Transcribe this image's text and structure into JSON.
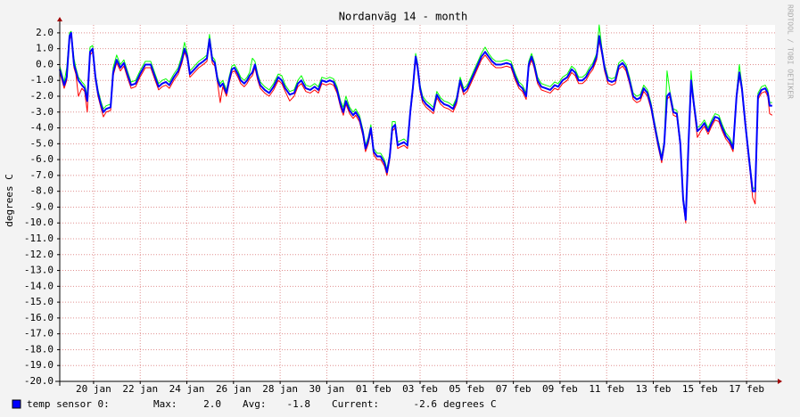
{
  "chart_data": {
    "type": "line",
    "title": "Nordanväg 14 - month",
    "y_label": "degrees C",
    "watermark": "RRDTOOL / TOBI OETIKER",
    "x": [
      18.55,
      18.74,
      18.85,
      18.97,
      19.04,
      19.16,
      19.24,
      19.35,
      19.5,
      19.62,
      19.73,
      19.85,
      19.96,
      20.08,
      20.19,
      20.31,
      20.42,
      20.54,
      20.73,
      20.84,
      20.99,
      21.15,
      21.3,
      21.45,
      21.61,
      21.8,
      21.99,
      22.22,
      22.45,
      22.64,
      22.79,
      22.94,
      23.1,
      23.25,
      23.44,
      23.63,
      23.79,
      23.9,
      24.02,
      24.13,
      24.32,
      24.51,
      24.7,
      24.86,
      24.97,
      25.09,
      25.2,
      25.32,
      25.43,
      25.54,
      25.7,
      25.81,
      25.93,
      26.04,
      26.19,
      26.31,
      26.46,
      26.58,
      26.69,
      26.81,
      26.92,
      27.04,
      27.15,
      27.34,
      27.53,
      27.72,
      27.92,
      28.07,
      28.22,
      28.41,
      28.6,
      28.76,
      28.91,
      29.1,
      29.29,
      29.48,
      29.64,
      29.79,
      29.98,
      30.13,
      30.29,
      30.44,
      30.59,
      30.71,
      30.82,
      30.98,
      31.13,
      31.24,
      31.4,
      31.55,
      31.66,
      31.78,
      31.89,
      32.01,
      32.16,
      32.31,
      32.47,
      32.58,
      32.7,
      32.81,
      32.93,
      33.04,
      33.16,
      33.31,
      33.46,
      33.58,
      33.69,
      33.81,
      33.88,
      34.0,
      34.11,
      34.26,
      34.42,
      34.57,
      34.72,
      34.88,
      35.03,
      35.22,
      35.41,
      35.56,
      35.72,
      35.87,
      36.02,
      36.18,
      36.33,
      36.48,
      36.63,
      36.79,
      36.94,
      37.09,
      37.25,
      37.48,
      37.71,
      37.9,
      38.09,
      38.24,
      38.39,
      38.55,
      38.66,
      38.78,
      38.89,
      39.04,
      39.2,
      39.39,
      39.58,
      39.77,
      39.92,
      40.11,
      40.31,
      40.5,
      40.65,
      40.8,
      40.96,
      41.11,
      41.26,
      41.41,
      41.57,
      41.68,
      41.8,
      41.91,
      42.06,
      42.22,
      42.37,
      42.52,
      42.68,
      42.83,
      42.98,
      43.14,
      43.29,
      43.44,
      43.59,
      43.75,
      43.9,
      44.05,
      44.21,
      44.36,
      44.47,
      44.59,
      44.7,
      44.86,
      45.01,
      45.16,
      45.28,
      45.39,
      45.51,
      45.62,
      45.74,
      45.89,
      46.04,
      46.19,
      46.35,
      46.5,
      46.65,
      46.81,
      46.96,
      47.11,
      47.27,
      47.42,
      47.57,
      47.69,
      47.8,
      47.95,
      48.11,
      48.26,
      48.37,
      48.49,
      48.64,
      48.8,
      48.91,
      48.99,
      49.1
    ],
    "series": [
      {
        "color": "#ff0000",
        "values": [
          -0.5,
          -1.5,
          -1.0,
          1.6,
          1.8,
          -0.2,
          -0.6,
          -2.0,
          -1.5,
          -1.7,
          -3.0,
          0.6,
          0.8,
          -1.0,
          -2.0,
          -2.7,
          -3.3,
          -3.0,
          -2.9,
          -0.7,
          0.1,
          -0.4,
          -0.1,
          -0.8,
          -1.5,
          -1.4,
          -0.8,
          -0.2,
          -0.2,
          -1.0,
          -1.6,
          -1.4,
          -1.3,
          -1.5,
          -1.0,
          -0.6,
          0.1,
          0.8,
          0.3,
          -0.8,
          -0.5,
          -0.2,
          0.0,
          0.2,
          1.4,
          0.1,
          -0.1,
          -1.2,
          -2.4,
          -1.4,
          -2.0,
          -1.2,
          -0.5,
          -0.4,
          -0.8,
          -1.2,
          -1.4,
          -1.2,
          -0.9,
          -0.7,
          -0.2,
          -1.0,
          -1.5,
          -1.8,
          -2.0,
          -1.6,
          -1.0,
          -1.2,
          -1.7,
          -2.3,
          -2.0,
          -1.4,
          -1.2,
          -1.7,
          -1.8,
          -1.6,
          -1.8,
          -1.2,
          -1.3,
          -1.2,
          -1.3,
          -1.8,
          -2.7,
          -3.2,
          -2.5,
          -3.1,
          -3.4,
          -3.2,
          -3.6,
          -4.5,
          -5.5,
          -5.0,
          -4.2,
          -5.7,
          -6.0,
          -6.0,
          -6.4,
          -7.0,
          -6.0,
          -4.2,
          -4.0,
          -5.3,
          -5.2,
          -5.1,
          -5.3,
          -3.2,
          -1.7,
          0.3,
          -0.2,
          -1.7,
          -2.4,
          -2.7,
          -2.9,
          -3.1,
          -2.1,
          -2.5,
          -2.7,
          -2.8,
          -3.0,
          -2.5,
          -1.2,
          -1.9,
          -1.7,
          -1.2,
          -0.7,
          -0.2,
          0.3,
          0.6,
          0.3,
          0.0,
          -0.2,
          -0.2,
          -0.1,
          -0.2,
          -1.0,
          -1.5,
          -1.7,
          -2.2,
          -0.2,
          0.3,
          -0.2,
          -1.2,
          -1.6,
          -1.7,
          -1.8,
          -1.5,
          -1.6,
          -1.2,
          -1.0,
          -0.5,
          -0.7,
          -1.2,
          -1.2,
          -1.0,
          -0.6,
          -0.3,
          0.3,
          1.5,
          0.6,
          -0.4,
          -1.2,
          -1.3,
          -1.2,
          -0.3,
          -0.1,
          -0.4,
          -1.2,
          -2.2,
          -2.4,
          -2.3,
          -1.7,
          -2.0,
          -2.8,
          -4.0,
          -5.2,
          -6.2,
          -5.2,
          -2.2,
          -2.0,
          -3.2,
          -3.3,
          -5.2,
          -8.7,
          -10.0,
          -5.2,
          -1.2,
          -2.7,
          -4.6,
          -4.2,
          -3.9,
          -4.4,
          -3.9,
          -3.5,
          -3.6,
          -4.2,
          -4.7,
          -5.0,
          -5.5,
          -2.2,
          -0.7,
          -1.7,
          -4.0,
          -6.2,
          -8.4,
          -8.8,
          -2.2,
          -1.8,
          -1.7,
          -2.0,
          -3.1,
          -3.2
        ]
      },
      {
        "color": "#00ff00",
        "values": [
          -0.1,
          -1.1,
          -0.2,
          2.0,
          2.1,
          0.4,
          -0.2,
          -0.8,
          -1.1,
          -1.3,
          -2.0,
          1.1,
          1.2,
          -0.6,
          -1.6,
          -2.3,
          -2.8,
          -2.6,
          -2.5,
          -0.2,
          0.6,
          0.0,
          0.3,
          -0.4,
          -1.1,
          -1.0,
          -0.4,
          0.2,
          0.2,
          -0.6,
          -1.2,
          -1.0,
          -0.9,
          -1.1,
          -0.6,
          -0.2,
          0.6,
          1.4,
          0.7,
          -0.4,
          -0.1,
          0.2,
          0.4,
          0.6,
          1.9,
          0.5,
          0.3,
          -0.8,
          -1.2,
          -1.0,
          -1.6,
          -0.8,
          -0.1,
          0.0,
          -0.4,
          -0.8,
          -1.0,
          -0.8,
          -0.5,
          0.4,
          0.2,
          -0.6,
          -1.1,
          -1.4,
          -1.6,
          -1.2,
          -0.6,
          -0.7,
          -1.3,
          -1.7,
          -1.6,
          -1.0,
          -0.7,
          -1.3,
          -1.4,
          -1.2,
          -1.4,
          -0.8,
          -0.9,
          -0.8,
          -0.9,
          -1.4,
          -2.3,
          -2.7,
          -2.0,
          -2.7,
          -3.0,
          -2.8,
          -3.2,
          -4.1,
          -5.1,
          -4.6,
          -3.8,
          -5.3,
          -5.6,
          -5.6,
          -6.0,
          -6.6,
          -5.6,
          -3.6,
          -3.6,
          -4.9,
          -4.8,
          -4.7,
          -4.9,
          -2.8,
          -1.3,
          0.7,
          0.2,
          -1.3,
          -2.0,
          -2.3,
          -2.5,
          -2.7,
          -1.7,
          -2.1,
          -2.3,
          -2.4,
          -2.6,
          -2.1,
          -0.8,
          -1.5,
          -1.3,
          -0.8,
          -0.3,
          0.2,
          0.7,
          1.1,
          0.7,
          0.4,
          0.2,
          0.2,
          0.3,
          0.2,
          -0.6,
          -1.1,
          -1.3,
          -1.8,
          0.2,
          0.7,
          0.2,
          -0.8,
          -1.2,
          -1.3,
          -1.4,
          -1.1,
          -1.2,
          -0.8,
          -0.6,
          -0.1,
          -0.3,
          -0.8,
          -0.8,
          -0.6,
          -0.2,
          0.1,
          0.7,
          2.5,
          1.0,
          0.0,
          -0.8,
          -0.9,
          -0.8,
          0.1,
          0.3,
          0.0,
          -0.8,
          -1.8,
          -2.0,
          -1.9,
          -1.3,
          -1.6,
          -2.4,
          -3.6,
          -4.8,
          -5.8,
          -4.8,
          -0.4,
          -1.6,
          -2.8,
          -2.9,
          -4.8,
          -8.3,
          -9.6,
          -4.8,
          -0.4,
          -2.3,
          -4.0,
          -3.8,
          -3.5,
          -4.0,
          -3.5,
          -3.1,
          -3.2,
          -3.8,
          -4.3,
          -4.6,
          -5.1,
          -1.8,
          0.0,
          -1.3,
          -3.6,
          -5.8,
          -7.8,
          -7.8,
          -1.8,
          -1.4,
          -1.3,
          -1.6,
          -2.4,
          -2.4
        ]
      },
      {
        "name": "temp sensor 0:",
        "color": "#0000ff",
        "values": [
          -0.3,
          -1.3,
          -0.8,
          1.8,
          2.0,
          0.0,
          -0.4,
          -1.0,
          -1.3,
          -1.5,
          -2.3,
          0.8,
          1.0,
          -0.8,
          -1.8,
          -2.5,
          -3.0,
          -2.8,
          -2.7,
          -0.5,
          0.3,
          -0.2,
          0.1,
          -0.6,
          -1.3,
          -1.2,
          -0.6,
          0.0,
          0.0,
          -0.8,
          -1.4,
          -1.2,
          -1.1,
          -1.3,
          -0.8,
          -0.4,
          0.3,
          1.0,
          0.5,
          -0.6,
          -0.3,
          0.0,
          0.2,
          0.4,
          1.6,
          0.3,
          0.1,
          -1.0,
          -1.4,
          -1.2,
          -1.8,
          -1.0,
          -0.3,
          -0.2,
          -0.6,
          -1.0,
          -1.2,
          -1.0,
          -0.7,
          -0.5,
          0.0,
          -0.8,
          -1.3,
          -1.6,
          -1.8,
          -1.4,
          -0.8,
          -1.0,
          -1.5,
          -1.9,
          -1.8,
          -1.2,
          -1.0,
          -1.5,
          -1.6,
          -1.4,
          -1.6,
          -1.0,
          -1.1,
          -1.0,
          -1.1,
          -1.6,
          -2.5,
          -3.0,
          -2.3,
          -2.9,
          -3.2,
          -3.0,
          -3.4,
          -4.3,
          -5.3,
          -4.8,
          -4.0,
          -5.5,
          -5.8,
          -5.8,
          -6.2,
          -6.8,
          -5.8,
          -4.0,
          -3.8,
          -5.1,
          -5.0,
          -4.9,
          -5.1,
          -3.0,
          -1.5,
          0.5,
          0.0,
          -1.5,
          -2.2,
          -2.5,
          -2.7,
          -2.9,
          -1.9,
          -2.3,
          -2.5,
          -2.6,
          -2.8,
          -2.3,
          -1.0,
          -1.7,
          -1.5,
          -1.0,
          -0.5,
          0.0,
          0.5,
          0.8,
          0.5,
          0.2,
          0.0,
          0.0,
          0.1,
          0.0,
          -0.8,
          -1.3,
          -1.5,
          -2.0,
          0.0,
          0.5,
          0.0,
          -1.0,
          -1.4,
          -1.5,
          -1.6,
          -1.3,
          -1.4,
          -1.0,
          -0.8,
          -0.3,
          -0.5,
          -1.0,
          -1.0,
          -0.8,
          -0.4,
          -0.1,
          0.5,
          1.8,
          0.8,
          -0.2,
          -1.0,
          -1.1,
          -1.0,
          -0.1,
          0.1,
          -0.2,
          -1.0,
          -2.0,
          -2.2,
          -2.1,
          -1.5,
          -1.8,
          -2.6,
          -3.8,
          -5.0,
          -6.0,
          -5.0,
          -2.0,
          -1.8,
          -3.0,
          -3.1,
          -5.0,
          -8.5,
          -9.8,
          -5.0,
          -1.0,
          -2.5,
          -4.2,
          -4.0,
          -3.7,
          -4.2,
          -3.7,
          -3.3,
          -3.4,
          -4.0,
          -4.5,
          -4.8,
          -5.3,
          -2.0,
          -0.5,
          -1.5,
          -3.8,
          -6.0,
          -8.0,
          -8.0,
          -2.0,
          -1.6,
          -1.5,
          -1.8,
          -2.6,
          -2.6
        ]
      }
    ],
    "legend_stats": [
      {
        "name": "Max:",
        "value": 2.0,
        "label": "2.0"
      },
      {
        "name": "Avg:",
        "value": -1.8,
        "label": "-1.8"
      },
      {
        "name": "Current:",
        "value": -2.6,
        "label": "-2.6"
      }
    ],
    "unit": "degrees C",
    "xlim": [
      18.55,
      49.22
    ],
    "xticks": [
      {
        "value": 20,
        "label": "20 jan"
      },
      {
        "value": 22,
        "label": "22 jan"
      },
      {
        "value": 24,
        "label": "24 jan"
      },
      {
        "value": 26,
        "label": "26 jan"
      },
      {
        "value": 28,
        "label": "28 jan"
      },
      {
        "value": 30,
        "label": "30 jan"
      },
      {
        "value": 32,
        "label": "01 feb"
      },
      {
        "value": 34,
        "label": "03 feb"
      },
      {
        "value": 36,
        "label": "05 feb"
      },
      {
        "value": 38,
        "label": "07 feb"
      },
      {
        "value": 40,
        "label": "09 feb"
      },
      {
        "value": 42,
        "label": "11 feb"
      },
      {
        "value": 44,
        "label": "13 feb"
      },
      {
        "value": 46,
        "label": "15 feb"
      },
      {
        "value": 48,
        "label": "17 feb"
      }
    ],
    "ylim": [
      -20,
      2.5
    ],
    "yticks": [
      {
        "value": 2,
        "label": "2.0"
      },
      {
        "value": 1,
        "label": "1.0"
      },
      {
        "value": 0,
        "label": "0.0"
      },
      {
        "value": -1,
        "label": "-1.0"
      },
      {
        "value": -2,
        "label": "-2.0"
      },
      {
        "value": -3,
        "label": "-3.0"
      },
      {
        "value": -4,
        "label": "-4.0"
      },
      {
        "value": -5,
        "label": "-5.0"
      },
      {
        "value": -6,
        "label": "-6.0"
      },
      {
        "value": -7,
        "label": "-7.0"
      },
      {
        "value": -8,
        "label": "-8.0"
      },
      {
        "value": -9,
        "label": "-9.0"
      },
      {
        "value": -10,
        "label": "-10.0"
      },
      {
        "value": -11,
        "label": "-11.0"
      },
      {
        "value": -12,
        "label": "-12.0"
      },
      {
        "value": -13,
        "label": "-13.0"
      },
      {
        "value": -14,
        "label": "-14.0"
      },
      {
        "value": -15,
        "label": "-15.0"
      },
      {
        "value": -16,
        "label": "-16.0"
      },
      {
        "value": -17,
        "label": "-17.0"
      },
      {
        "value": -18,
        "label": "-18.0"
      },
      {
        "value": -19,
        "label": "-19.0"
      },
      {
        "value": -20,
        "label": "-20.0"
      }
    ],
    "grid": true
  }
}
